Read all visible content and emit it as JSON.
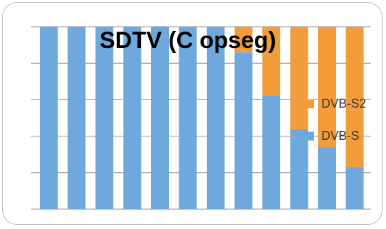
{
  "chart_data": {
    "type": "bar",
    "stacked": true,
    "normalized": true,
    "title": "SDTV (C opseg)",
    "xlabel": "",
    "ylabel": "",
    "categories": [
      "",
      "",
      "",
      "",
      "",
      "",
      "",
      "",
      "",
      "",
      "",
      ""
    ],
    "series": [
      {
        "name": "DVB-S",
        "color": "#6fa8dc",
        "values": [
          100,
          100,
          100,
          100,
          100,
          100,
          100,
          86,
          62,
          44,
          34,
          23
        ]
      },
      {
        "name": "DVB-S2",
        "color": "#f39c3c",
        "values": [
          0,
          0,
          0,
          0,
          0,
          0,
          0,
          14,
          38,
          56,
          66,
          77
        ]
      }
    ],
    "ylim": [
      0,
      100
    ],
    "grid": true,
    "legend_position": "right",
    "legend_order": [
      "DVB-S2",
      "DVB-S"
    ]
  }
}
